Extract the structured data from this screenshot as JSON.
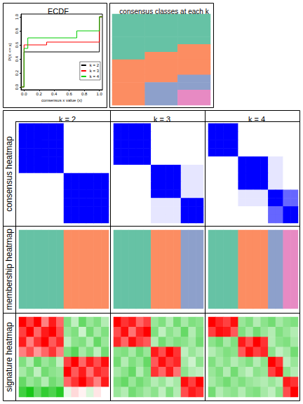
{
  "figure": {
    "row_titles": [
      "consensus heatmap",
      "membership heatmap",
      "signature heatmap"
    ]
  },
  "class_colors": [
    "#66C2A5",
    "#FC8D62",
    "#8DA0CB",
    "#E78AC3"
  ],
  "consensus_colors": [
    "#FFFFFF",
    "#0000FF"
  ],
  "consensus_range": [
    0,
    1
  ],
  "signature_colors": [
    "#00C000",
    "#FFFFFF",
    "#FF0000"
  ],
  "signature_range": [
    -2,
    2
  ],
  "chart_data": [
    {
      "type": "ecdf",
      "title": "ECDF",
      "x_label": "consensus x value (x)",
      "y_label": "P(X <= x)",
      "xlim": [
        -0.04,
        1.04
      ],
      "ylim": [
        -0.04,
        1.04
      ],
      "xticks": [
        {
          "value": 0,
          "label": "0.0"
        },
        0.2,
        0.4,
        0.6,
        0.8,
        {
          "value": 1,
          "label": "1.0"
        }
      ],
      "yticks": [
        {
          "value": 0,
          "label": "0.0"
        },
        0.2,
        0.4,
        0.6,
        0.8,
        {
          "value": 1,
          "label": "1.0"
        }
      ],
      "legend": "bottom-right",
      "series": [
        {
          "name": "k = 2",
          "color": "#000000",
          "x": [
            -0.04,
            0,
            0.98,
            1,
            1.04
          ],
          "values": [
            0,
            0.5,
            0.5,
            1,
            1
          ]
        },
        {
          "name": "k = 3",
          "color": "#FF0000",
          "x": [
            -0.04,
            0,
            0.3,
            0.98,
            1,
            1.04
          ],
          "values": [
            0,
            0.6,
            0.64,
            0.64,
            1,
            1
          ]
        },
        {
          "name": "k = 4",
          "color": "#00CD00",
          "x": [
            -0.04,
            0,
            0.05,
            0.7,
            0.98,
            1,
            1.04
          ],
          "values": [
            0,
            0.55,
            0.7,
            0.8,
            0.8,
            1,
            1
          ]
        }
      ]
    },
    {
      "type": "heatmap",
      "title": "consensus classes at each k",
      "tick_labels": false,
      "classes": [
        [
          1,
          1,
          1,
          1,
          1,
          1,
          2,
          2,
          2,
          2,
          2,
          2
        ],
        [
          1,
          1,
          1,
          1,
          1,
          2,
          2,
          2,
          2,
          3,
          3,
          3
        ],
        [
          1,
          1,
          1,
          1,
          2,
          2,
          2,
          2,
          3,
          3,
          4,
          4
        ]
      ]
    },
    {
      "type": "heatmap",
      "title": "k = 2",
      "tick_labels": false,
      "classes": [
        1,
        1,
        1,
        1,
        1,
        1,
        2,
        2,
        2,
        2,
        2,
        2
      ],
      "consensus": [
        [
          1,
          1,
          1,
          1,
          1,
          1,
          0,
          0,
          0,
          0,
          0,
          0
        ],
        [
          1,
          1,
          1,
          1,
          1,
          1,
          0,
          0,
          0,
          0,
          0,
          0
        ],
        [
          1,
          1,
          1,
          1,
          1,
          1,
          0,
          0,
          0,
          0,
          0,
          0
        ],
        [
          1,
          1,
          1,
          1,
          1,
          1,
          0,
          0,
          0,
          0,
          0,
          0
        ],
        [
          1,
          1,
          1,
          1,
          1,
          1,
          0,
          0,
          0,
          0,
          0,
          0
        ],
        [
          1,
          1,
          1,
          1,
          1,
          1,
          0,
          0,
          0,
          0,
          0,
          0
        ],
        [
          0,
          0,
          0,
          0,
          0,
          0,
          1,
          1,
          1,
          1,
          1,
          1
        ],
        [
          0,
          0,
          0,
          0,
          0,
          0,
          1,
          1,
          1,
          1,
          1,
          1
        ],
        [
          0,
          0,
          0,
          0,
          0,
          0,
          1,
          1,
          1,
          1,
          1,
          1
        ],
        [
          0,
          0,
          0,
          0,
          0,
          0,
          1,
          1,
          1,
          1,
          1,
          1
        ],
        [
          0,
          0,
          0,
          0,
          0,
          0,
          1,
          1,
          1,
          1,
          1,
          1
        ],
        [
          0,
          0,
          0,
          0,
          0,
          0,
          1,
          1,
          1,
          1,
          1,
          1
        ]
      ],
      "signature": [
        [
          2,
          1.5,
          2,
          1,
          1.8,
          1.2,
          -1,
          -0.5,
          -1.2,
          -0.8,
          -1,
          -0.6
        ],
        [
          1.5,
          2,
          1.2,
          1.8,
          2,
          1.4,
          -0.8,
          -1,
          -0.4,
          -1.1,
          -0.7,
          -1
        ],
        [
          1.8,
          1,
          1.6,
          2,
          1.3,
          1.7,
          -0.5,
          -0.9,
          -1,
          -0.6,
          -1.2,
          -0.8
        ],
        [
          1,
          1.4,
          0.8,
          1.2,
          1.6,
          1,
          -1,
          -1.3,
          -0.7,
          -1,
          -0.5,
          -1.1
        ],
        [
          -1,
          -0.6,
          -1.2,
          -0.8,
          -1,
          -0.5,
          1.5,
          2,
          1.2,
          1.8,
          1.4,
          1.9
        ],
        [
          -0.7,
          -1,
          -0.5,
          -1.1,
          -0.9,
          -0.8,
          2,
          1.3,
          1.8,
          1.1,
          1.7,
          1.5
        ],
        [
          -1.2,
          -0.8,
          -1,
          -0.6,
          -1.1,
          -0.9,
          1.2,
          1.6,
          2,
          1.5,
          1,
          1.8
        ],
        [
          -1.5,
          -1.8,
          -1.2,
          -1.6,
          -1.4,
          -1.7,
          -0.2,
          0.3,
          0.1,
          -0.3,
          0.2,
          0
        ]
      ]
    },
    {
      "type": "heatmap",
      "title": "k = 3",
      "tick_labels": false,
      "classes": [
        1,
        1,
        1,
        1,
        1,
        2,
        2,
        2,
        2,
        3,
        3,
        3
      ],
      "consensus": [
        [
          1,
          1,
          1,
          1,
          1,
          0,
          0,
          0,
          0,
          0,
          0,
          0
        ],
        [
          1,
          1,
          1,
          1,
          1,
          0,
          0,
          0,
          0,
          0,
          0,
          0
        ],
        [
          1,
          1,
          1,
          1,
          1,
          0,
          0,
          0,
          0,
          0,
          0,
          0
        ],
        [
          1,
          1,
          1,
          1,
          1,
          0,
          0,
          0,
          0,
          0,
          0,
          0
        ],
        [
          1,
          1,
          1,
          1,
          1,
          0,
          0,
          0,
          0,
          0,
          0,
          0
        ],
        [
          0,
          0,
          0,
          0,
          0,
          1,
          1,
          1,
          1,
          0.1,
          0.1,
          0.1
        ],
        [
          0,
          0,
          0,
          0,
          0,
          1,
          1,
          1,
          1,
          0.1,
          0.1,
          0.1
        ],
        [
          0,
          0,
          0,
          0,
          0,
          1,
          1,
          1,
          1,
          0.1,
          0.1,
          0.1
        ],
        [
          0,
          0,
          0,
          0,
          0,
          1,
          1,
          1,
          1,
          0.1,
          0.1,
          0.1
        ],
        [
          0,
          0,
          0,
          0,
          0,
          0.1,
          0.1,
          0.1,
          0.1,
          1,
          1,
          1
        ],
        [
          0,
          0,
          0,
          0,
          0,
          0.1,
          0.1,
          0.1,
          0.1,
          1,
          1,
          1
        ],
        [
          0,
          0,
          0,
          0,
          0,
          0.1,
          0.1,
          0.1,
          0.1,
          1,
          1,
          1
        ]
      ],
      "signature": [
        [
          2,
          1.6,
          1.8,
          1.2,
          1.5,
          -0.8,
          -1,
          -0.6,
          -1.1,
          -0.7,
          -1,
          -0.9
        ],
        [
          1.4,
          1.9,
          1.1,
          1.7,
          2,
          -1,
          -0.5,
          -0.9,
          -0.7,
          -1.2,
          -0.6,
          -1
        ],
        [
          1.7,
          1.2,
          1.9,
          1.5,
          1.3,
          -0.6,
          -1.1,
          -0.8,
          -1,
          -0.9,
          -0.7,
          -1.1
        ],
        [
          -0.9,
          -1,
          -0.7,
          -1.1,
          -0.8,
          1.8,
          1.4,
          2,
          1.6,
          -0.5,
          -0.8,
          -0.6
        ],
        [
          -1.1,
          -0.6,
          -1,
          -0.8,
          -1.2,
          1.3,
          1.9,
          1.5,
          1.7,
          -0.7,
          -0.4,
          -0.9
        ],
        [
          -0.7,
          -0.9,
          -1.2,
          -0.6,
          -1,
          1.6,
          1.2,
          1.8,
          1.1,
          -0.9,
          -0.6,
          -0.5
        ],
        [
          -1,
          -1.2,
          -0.8,
          -1.1,
          -0.9,
          -0.6,
          -0.8,
          -0.5,
          -0.7,
          1.9,
          1.5,
          2
        ],
        [
          -0.8,
          -0.6,
          -1.1,
          -0.9,
          -0.7,
          -0.9,
          -0.5,
          -1,
          -0.6,
          1.4,
          1.8,
          1.6
        ]
      ]
    },
    {
      "type": "heatmap",
      "title": "k = 4",
      "tick_labels": false,
      "classes": [
        1,
        1,
        1,
        1,
        2,
        2,
        2,
        2,
        3,
        3,
        4,
        4
      ],
      "consensus": [
        [
          1,
          1,
          1,
          1,
          0,
          0,
          0,
          0,
          0,
          0,
          0,
          0
        ],
        [
          1,
          1,
          1,
          1,
          0,
          0,
          0,
          0,
          0,
          0,
          0,
          0
        ],
        [
          1,
          1,
          1,
          1,
          0,
          0,
          0,
          0,
          0,
          0,
          0,
          0
        ],
        [
          1,
          1,
          1,
          1,
          0,
          0,
          0,
          0,
          0,
          0,
          0,
          0
        ],
        [
          0,
          0,
          0,
          0,
          1,
          1,
          1,
          1,
          0.1,
          0.1,
          0,
          0
        ],
        [
          0,
          0,
          0,
          0,
          1,
          1,
          1,
          1,
          0.1,
          0.1,
          0,
          0
        ],
        [
          0,
          0,
          0,
          0,
          1,
          1,
          1,
          1,
          0.1,
          0.1,
          0,
          0
        ],
        [
          0,
          0,
          0,
          0,
          1,
          1,
          1,
          1,
          0.1,
          0.1,
          0,
          0
        ],
        [
          0,
          0,
          0,
          0,
          0.1,
          0.1,
          0.1,
          0.1,
          1,
          1,
          0.6,
          0.6
        ],
        [
          0,
          0,
          0,
          0,
          0.1,
          0.1,
          0.1,
          0.1,
          1,
          1,
          0.6,
          0.6
        ],
        [
          0,
          0,
          0,
          0,
          0,
          0,
          0,
          0,
          0.6,
          0.6,
          1,
          1
        ],
        [
          0,
          0,
          0,
          0,
          0,
          0,
          0,
          0,
          0.6,
          0.6,
          1,
          1
        ]
      ],
      "signature": [
        [
          2,
          1.7,
          1.5,
          1.9,
          -0.8,
          -1,
          -0.6,
          -0.9,
          -1.1,
          -0.7,
          -0.9,
          -1
        ],
        [
          1.5,
          1.9,
          1.8,
          1.3,
          -1,
          -0.7,
          -1.1,
          -0.8,
          -0.6,
          -1,
          -0.8,
          -0.6
        ],
        [
          -0.9,
          -1.1,
          -0.7,
          -1,
          1.8,
          1.4,
          2,
          1.6,
          -0.6,
          -0.9,
          -1,
          -0.7
        ],
        [
          -0.6,
          -0.8,
          -1,
          -0.9,
          1.3,
          1.9,
          1.5,
          1.7,
          -0.9,
          -0.5,
          -0.7,
          -1.1
        ],
        [
          -1,
          -0.7,
          -0.9,
          -0.6,
          -0.8,
          -1,
          -0.6,
          -0.9,
          2,
          1.6,
          -0.5,
          -0.8
        ],
        [
          -0.8,
          -1,
          -0.6,
          -1.1,
          -0.7,
          -0.5,
          -0.9,
          -0.8,
          1.5,
          1.9,
          -0.9,
          -0.6
        ],
        [
          -0.7,
          -0.9,
          -1.1,
          -0.8,
          -1,
          -0.8,
          -0.7,
          -0.6,
          -0.8,
          -0.6,
          1.8,
          1.6
        ],
        [
          -1.1,
          -0.6,
          -0.8,
          -0.9,
          -0.6,
          -0.9,
          -1,
          -0.7,
          -0.5,
          -0.9,
          1.4,
          2
        ]
      ]
    }
  ]
}
